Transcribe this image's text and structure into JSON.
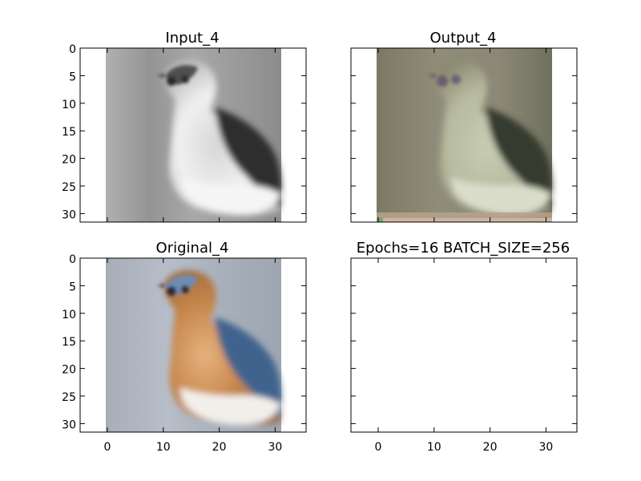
{
  "panels": [
    {
      "id": "input",
      "title": "Input_4",
      "image": "grayscale bird",
      "yticks": [
        "0",
        "5",
        "10",
        "15",
        "20",
        "25",
        "30"
      ],
      "xticks": []
    },
    {
      "id": "output",
      "title": "Output_4",
      "image": "reconstructed bird",
      "yticks": [],
      "xticks": []
    },
    {
      "id": "original",
      "title": "Original_4",
      "image": "color bird",
      "yticks": [
        "0",
        "5",
        "10",
        "15",
        "20",
        "25",
        "30"
      ],
      "xticks": [
        "0",
        "10",
        "20",
        "30"
      ]
    },
    {
      "id": "empty",
      "title": "Epochs=16 BATCH_SIZE=256",
      "image": "",
      "yticks": [],
      "xticks": [
        "0",
        "10",
        "20",
        "30"
      ]
    }
  ],
  "colors": {
    "background": "#ffffff",
    "axis": "#000000",
    "gray_dark": "#2c2c2c",
    "gray_mid": "#8d8d8d",
    "gray_light": "#e4e4e4",
    "bird_blue": "#4c6f9f",
    "bird_orange": "#c8864a",
    "sky_blue": "#aeb7c6"
  }
}
